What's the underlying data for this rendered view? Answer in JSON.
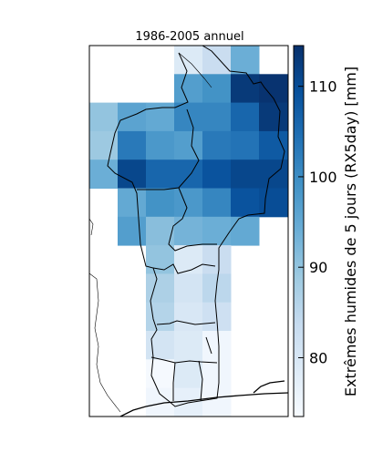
{
  "chart_data": {
    "type": "heatmap",
    "title": "1986-2005 annuel",
    "colorbar": {
      "label": "Extrêmes humides de 5 jours (RX5day) [mm]",
      "ticks": [
        80,
        90,
        100,
        110
      ],
      "range": [
        73.5,
        114.5
      ],
      "colormap": "Blues"
    },
    "grid": {
      "columns": 7,
      "rows": 13,
      "values": [
        [
          null,
          null,
          null,
          79,
          83,
          94,
          null
        ],
        [
          null,
          null,
          null,
          97,
          99,
          113,
          114
        ],
        [
          90,
          96,
          95,
          101,
          101,
          106,
          113
        ],
        [
          89,
          103,
          98,
          97,
          103,
          104,
          108
        ],
        [
          94,
          111,
          106,
          106,
          109,
          111,
          111
        ],
        [
          null,
          95,
          99,
          98,
          101,
          109,
          110
        ],
        [
          null,
          97,
          91,
          93,
          94,
          95,
          null
        ],
        [
          null,
          null,
          90,
          79,
          83,
          null,
          null
        ],
        [
          null,
          null,
          87,
          81,
          85,
          null,
          null
        ],
        [
          null,
          null,
          86,
          80,
          82,
          null,
          null
        ],
        [
          null,
          null,
          81,
          79,
          75,
          null,
          null
        ],
        [
          null,
          null,
          74,
          79,
          75,
          null,
          null
        ],
        [
          null,
          null,
          75,
          77,
          75,
          null,
          null
        ]
      ]
    }
  }
}
